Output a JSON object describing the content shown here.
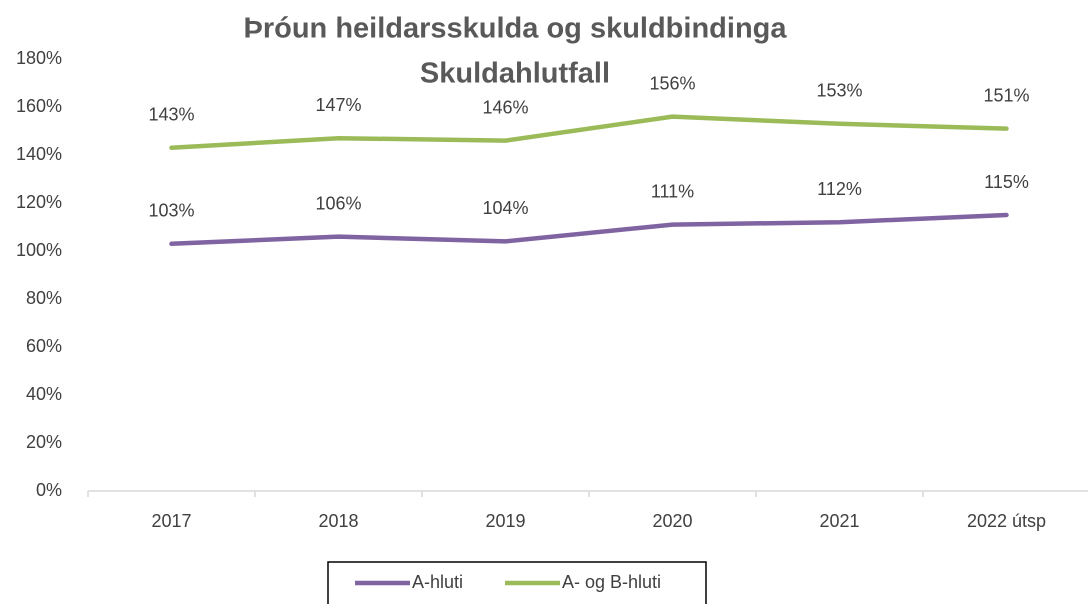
{
  "chart_data": {
    "type": "line",
    "title": "Þróun heildarsskulda og skuldbindinga",
    "subtitle": "Skuldahlutfall",
    "categories": [
      "2017",
      "2018",
      "2019",
      "2020",
      "2021",
      "2022 útsp"
    ],
    "series": [
      {
        "name": "A-hluti",
        "color": "#8064a2",
        "values": [
          103,
          106,
          104,
          111,
          112,
          115
        ],
        "value_labels": [
          "103%",
          "106%",
          "104%",
          "111%",
          "112%",
          "115%"
        ]
      },
      {
        "name": "A- og B-hluti",
        "color": "#9bbb59",
        "values": [
          143,
          147,
          146,
          156,
          153,
          151
        ],
        "value_labels": [
          "143%",
          "147%",
          "146%",
          "156%",
          "153%",
          "151%"
        ]
      }
    ],
    "ylim": [
      0,
      180
    ],
    "yticks": [
      {
        "value": 0,
        "label": "0%"
      },
      {
        "value": 20,
        "label": "20%"
      },
      {
        "value": 40,
        "label": "40%"
      },
      {
        "value": 60,
        "label": "60%"
      },
      {
        "value": 80,
        "label": "80%"
      },
      {
        "value": 100,
        "label": "100%"
      },
      {
        "value": 120,
        "label": "120%"
      },
      {
        "value": 140,
        "label": "140%"
      },
      {
        "value": 160,
        "label": "160%"
      },
      {
        "value": 180,
        "label": "180%"
      }
    ],
    "grid": false,
    "legend": "bottom"
  }
}
